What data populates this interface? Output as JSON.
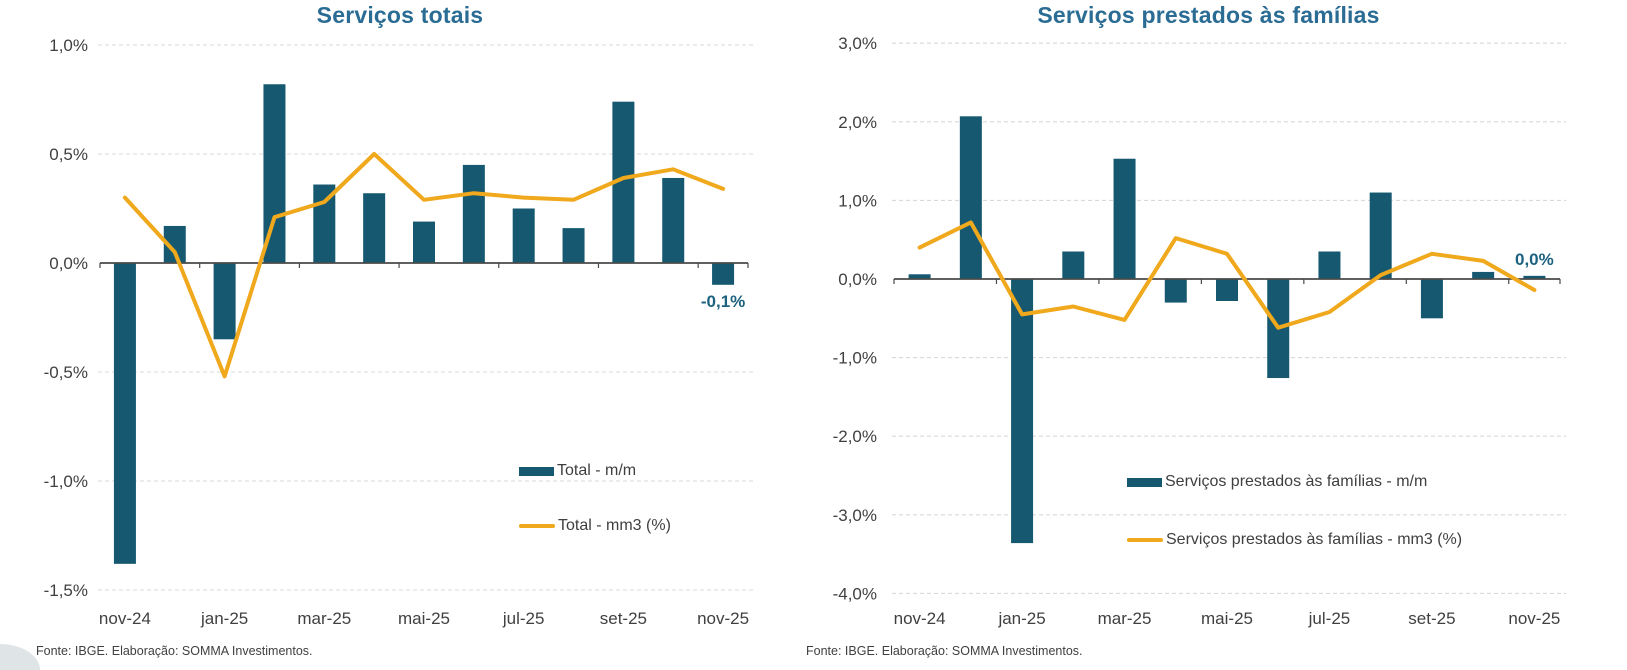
{
  "colors": {
    "bar": "#155870",
    "line": "#F0A81C",
    "title": "#2A6C94",
    "annotation": "#1D6180",
    "axis_text": "#404040",
    "axis_line": "#4A4A4A",
    "grid": "#D9D9D9",
    "source_text": "#404040"
  },
  "chart_data": [
    {
      "type": "bar",
      "title": "Serviços totais",
      "categories": [
        "nov-24",
        "dez-24",
        "jan-25",
        "fev-25",
        "mar-25",
        "abr-25",
        "mai-25",
        "jun-25",
        "jul-25",
        "ago-25",
        "set-25",
        "out-25",
        "nov-25"
      ],
      "x_tick_labels": [
        {
          "label": "nov-24",
          "category_index": 0
        },
        {
          "label": "jan-25",
          "category_index": 2
        },
        {
          "label": "mar-25",
          "category_index": 4
        },
        {
          "label": "mai-25",
          "category_index": 6
        },
        {
          "label": "jul-25",
          "category_index": 8
        },
        {
          "label": "set-25",
          "category_index": 10
        },
        {
          "label": "nov-25",
          "category_index": 12
        }
      ],
      "y_ticks": [
        {
          "value": 1.0,
          "label": "1,0%"
        },
        {
          "value": 0.5,
          "label": "0,5%"
        },
        {
          "value": 0.0,
          "label": "0,0%"
        },
        {
          "value": -0.5,
          "label": "-0,5%"
        },
        {
          "value": -1.0,
          "label": "-1,0%"
        },
        {
          "value": -1.5,
          "label": "-1,5%"
        }
      ],
      "ylim": [
        -1.5,
        1.0
      ],
      "grid": true,
      "legend_position": "inside-lower-right",
      "series": [
        {
          "name": "Total - m/m",
          "type": "bar",
          "values": [
            -1.38,
            0.17,
            -0.35,
            0.82,
            0.36,
            0.32,
            0.19,
            0.45,
            0.25,
            0.16,
            0.74,
            0.39,
            -0.1
          ]
        },
        {
          "name": "Total - mm3 (%)",
          "type": "line",
          "values": [
            0.3,
            0.05,
            -0.52,
            0.21,
            0.28,
            0.5,
            0.29,
            0.32,
            0.3,
            0.29,
            0.39,
            0.43,
            0.34
          ]
        }
      ],
      "annotation": {
        "text": "-0,1%",
        "category_index": 12,
        "position": "below-bar"
      },
      "source": "Fonte: IBGE. Elaboração: SOMMA Investimentos."
    },
    {
      "type": "bar",
      "title": "Serviços prestados às famílias",
      "categories": [
        "nov-24",
        "dez-24",
        "jan-25",
        "fev-25",
        "mar-25",
        "abr-25",
        "mai-25",
        "jun-25",
        "jul-25",
        "ago-25",
        "set-25",
        "out-25",
        "nov-25"
      ],
      "x_tick_labels": [
        {
          "label": "nov-24",
          "category_index": 0
        },
        {
          "label": "jan-25",
          "category_index": 2
        },
        {
          "label": "mar-25",
          "category_index": 4
        },
        {
          "label": "mai-25",
          "category_index": 6
        },
        {
          "label": "jul-25",
          "category_index": 8
        },
        {
          "label": "set-25",
          "category_index": 10
        },
        {
          "label": "nov-25",
          "category_index": 12
        }
      ],
      "y_ticks": [
        {
          "value": 3.0,
          "label": "3,0%"
        },
        {
          "value": 2.0,
          "label": "2,0%"
        },
        {
          "value": 1.0,
          "label": "1,0%"
        },
        {
          "value": 0.0,
          "label": "0,0%"
        },
        {
          "value": -1.0,
          "label": "-1,0%"
        },
        {
          "value": -2.0,
          "label": "-2,0%"
        },
        {
          "value": -3.0,
          "label": "-3,0%"
        },
        {
          "value": -4.0,
          "label": "-4,0%"
        }
      ],
      "ylim": [
        -4.0,
        3.0
      ],
      "grid": true,
      "legend_position": "inside-lower-right",
      "series": [
        {
          "name": "Serviços prestados às famílias - m/m",
          "type": "bar",
          "values": [
            0.06,
            2.07,
            -3.36,
            0.35,
            1.53,
            -0.3,
            -0.28,
            -1.26,
            0.35,
            1.1,
            -0.5,
            0.09,
            0.04
          ]
        },
        {
          "name": "Serviços prestados às famílias - mm3 (%)",
          "type": "line",
          "values": [
            0.4,
            0.72,
            -0.45,
            -0.35,
            -0.52,
            0.52,
            0.32,
            -0.62,
            -0.42,
            0.05,
            0.32,
            0.23,
            -0.14
          ]
        }
      ],
      "annotation": {
        "text": "0,0%",
        "category_index": 12,
        "position": "above-bar"
      },
      "source": "Fonte: IBGE. Elaboração: SOMMA Investimentos."
    }
  ]
}
